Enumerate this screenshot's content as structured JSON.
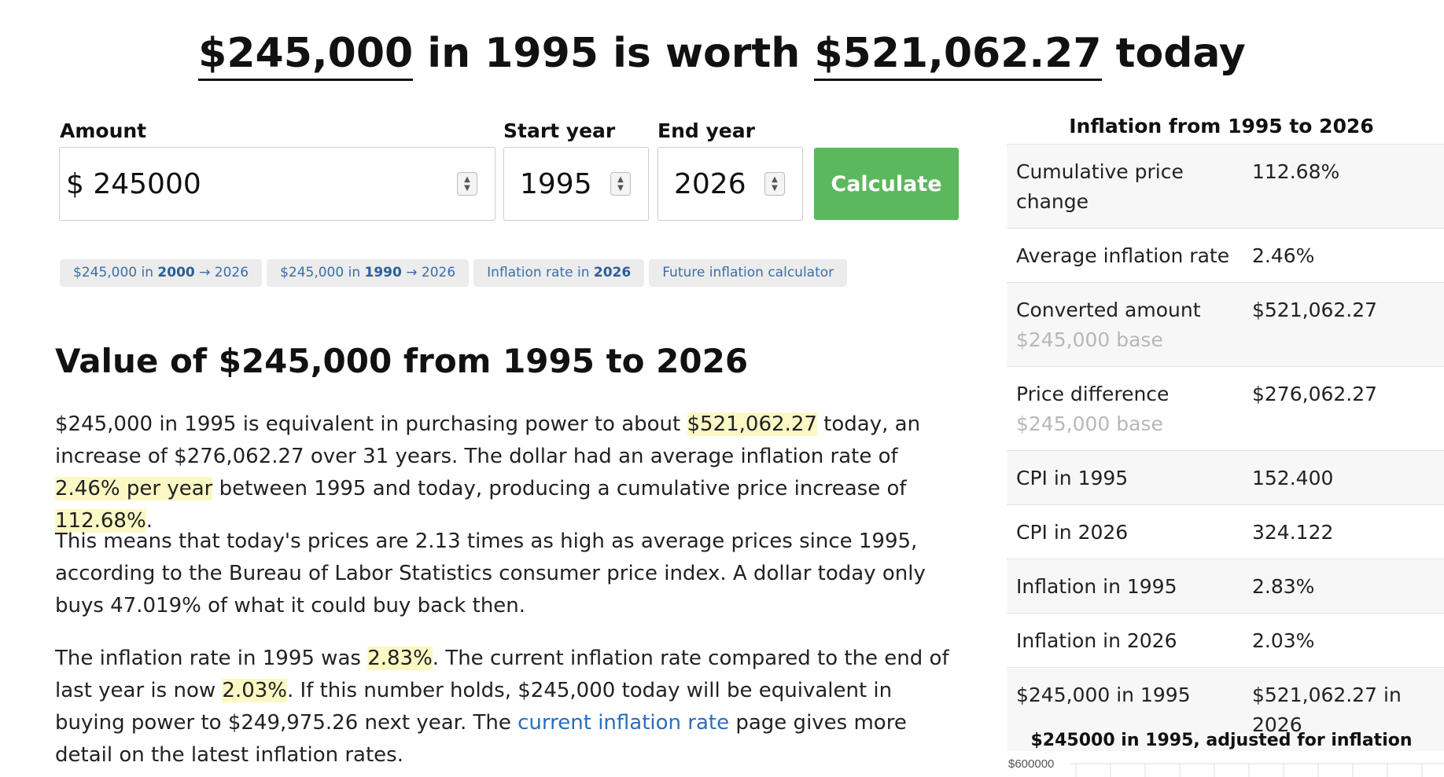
{
  "headline": {
    "amount": "$245,000",
    "middle": " in 1995 is worth ",
    "result": "$521,062.27",
    "end": " today"
  },
  "form": {
    "amount_label": "Amount",
    "amount_value": "$ 245000",
    "start_label": "Start year",
    "start_value": "1995",
    "end_label": "End year",
    "end_value": "2026",
    "calculate_label": "Calculate"
  },
  "chips": [
    {
      "pre": "$245,000 in ",
      "bold": "2000",
      "post": " → 2026"
    },
    {
      "pre": "$245,000 in ",
      "bold": "1990",
      "post": " → 2026"
    },
    {
      "pre": "Inflation rate in ",
      "bold": "2026",
      "post": ""
    },
    {
      "pre": "Future inflation calculator",
      "bold": "",
      "post": ""
    }
  ],
  "section_title": "Value of $245,000 from 1995 to 2026",
  "p1": {
    "a": "$245,000 in 1995 is equivalent in purchasing power to about ",
    "h1": "$521,062.27",
    "b": " today, an increase of $276,062.27 over 31 years. The dollar had an average inflation rate of ",
    "h2": "2.46% per year",
    "c": " between 1995 and today, producing a cumulative price increase of ",
    "h3": "112.68%",
    "d": "."
  },
  "p2": "This means that today's prices are 2.13 times as high as average prices since 1995, according to the Bureau of Labor Statistics consumer price index. A dollar today only buys 47.019% of what it could buy back then.",
  "p3": {
    "a": "The inflation rate in 1995 was ",
    "h1": "2.83%",
    "b": ". The current inflation rate compared to the end of last year is now ",
    "h2": "2.03%",
    "c": ". If this number holds, $245,000 today will be equivalent in buying power to $249,975.26 next year. The ",
    "link": "current inflation rate",
    "d": " page gives more detail on the latest inflation rates."
  },
  "sidebar": {
    "title": "Inflation from 1995 to 2026",
    "rows": [
      {
        "k": "Cumulative price change",
        "sub": "",
        "v": "112.68%"
      },
      {
        "k": "Average inflation rate",
        "sub": "",
        "v": "2.46%"
      },
      {
        "k": "Converted amount",
        "sub": "$245,000 base",
        "v": "$521,062.27"
      },
      {
        "k": "Price difference",
        "sub": "$245,000 base",
        "v": "$276,062.27"
      },
      {
        "k": "CPI in 1995",
        "sub": "",
        "v": "152.400"
      },
      {
        "k": "CPI in 2026",
        "sub": "",
        "v": "324.122"
      },
      {
        "k": "Inflation in 1995",
        "sub": "",
        "v": "2.83%"
      },
      {
        "k": "Inflation in 2026",
        "sub": "",
        "v": "2.03%"
      },
      {
        "k": "$245,000 in 1995",
        "sub": "",
        "v": "$521,062.27 in 2026"
      }
    ]
  },
  "chart_data": {
    "type": "line",
    "title": "$245000 in 1995, adjusted for inflation",
    "y_tick_labels": [
      "$600000"
    ]
  }
}
